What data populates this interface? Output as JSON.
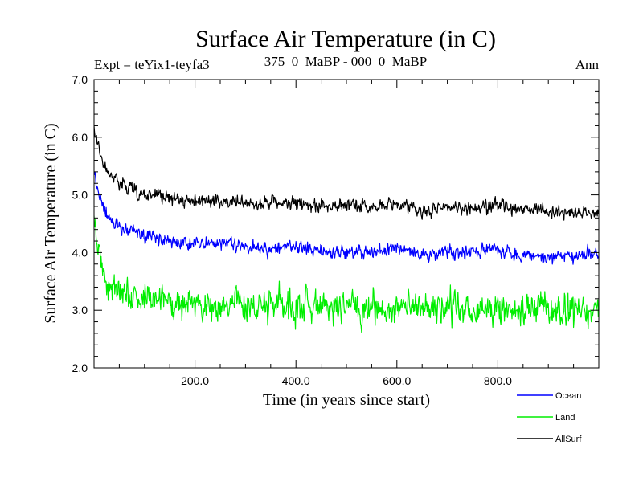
{
  "chart_data": {
    "type": "line",
    "title": "Surface Air Temperature (in C)",
    "subtitle_left": "Expt = teYix1-teyfa3",
    "subtitle_center": "375_0_MaBP - 000_0_MaBP",
    "subtitle_right": "Ann",
    "xlabel": "Time (in years since start)",
    "ylabel": "Surface Air Temperature (in C)",
    "xlim": [
      0,
      1000
    ],
    "ylim": [
      2.0,
      7.0
    ],
    "xticks": [
      "200.0",
      "400.0",
      "600.0",
      "800.0"
    ],
    "xtick_values": [
      200,
      400,
      600,
      800
    ],
    "yticks": [
      "2.0",
      "3.0",
      "4.0",
      "5.0",
      "6.0",
      "7.0"
    ],
    "ytick_values": [
      2,
      3,
      4,
      5,
      6,
      7
    ],
    "legend_position": "bottom-right, below plot",
    "series": [
      {
        "name": "Ocean",
        "color": "#0000ff",
        "x": [
          0,
          10,
          20,
          30,
          50,
          75,
          100,
          150,
          200,
          250,
          300,
          350,
          400,
          450,
          500,
          550,
          600,
          650,
          700,
          750,
          800,
          850,
          900,
          950,
          1000
        ],
        "values": [
          5.4,
          5.0,
          4.75,
          4.6,
          4.45,
          4.35,
          4.3,
          4.2,
          4.15,
          4.15,
          4.1,
          4.05,
          4.1,
          4.05,
          4.0,
          4.0,
          4.1,
          3.95,
          4.0,
          4.0,
          4.05,
          3.95,
          3.9,
          3.95,
          3.95
        ]
      },
      {
        "name": "Land",
        "color": "#00ee00",
        "x": [
          0,
          10,
          20,
          30,
          50,
          75,
          100,
          150,
          200,
          250,
          300,
          350,
          400,
          450,
          500,
          550,
          600,
          650,
          700,
          750,
          800,
          850,
          900,
          950,
          1000
        ],
        "values": [
          4.7,
          3.9,
          3.6,
          3.45,
          3.3,
          3.25,
          3.2,
          3.15,
          3.1,
          3.1,
          3.1,
          3.05,
          3.05,
          3.05,
          3.05,
          3.0,
          3.05,
          3.0,
          3.05,
          3.0,
          3.05,
          3.0,
          3.0,
          3.0,
          3.0
        ]
      },
      {
        "name": "AllSurf",
        "color": "#000000",
        "x": [
          0,
          10,
          20,
          30,
          50,
          75,
          100,
          150,
          200,
          250,
          300,
          350,
          400,
          450,
          500,
          550,
          600,
          650,
          700,
          750,
          800,
          850,
          900,
          950,
          1000
        ],
        "values": [
          6.2,
          5.75,
          5.5,
          5.35,
          5.2,
          5.1,
          5.0,
          4.95,
          4.9,
          4.9,
          4.85,
          4.85,
          4.85,
          4.8,
          4.8,
          4.8,
          4.85,
          4.7,
          4.8,
          4.75,
          4.8,
          4.75,
          4.7,
          4.7,
          4.7
        ]
      }
    ],
    "noise_amplitude": [
      0.12,
      0.28,
      0.12
    ],
    "random_seed": 1234
  }
}
